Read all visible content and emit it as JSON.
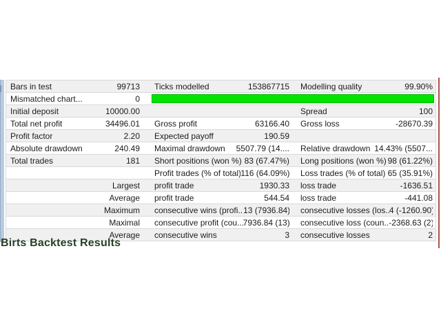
{
  "caption": "Birts Backtest Results",
  "colors": {
    "quality_bar": "#00e400",
    "quality_bar_border": "#00b400",
    "caption_text": "#254025",
    "left_strip": "#b9cbdf",
    "right_line": "#ad5050",
    "row_alt": "#f0f0f0",
    "row_border": "#d9d9d9",
    "text": "#1b1b1b"
  },
  "report": {
    "rows": [
      {
        "l1": "Bars in test",
        "v1": "99713",
        "l2": "Ticks modelled",
        "v2": "153867715",
        "l3": "Modelling quality",
        "v3": "99.90%"
      },
      {
        "l1": "Mismatched chart...",
        "v1": "0",
        "l2": "",
        "v2": "",
        "l3": "",
        "v3": ""
      },
      {
        "l1": "Initial deposit",
        "v1": "10000.00",
        "l2": "",
        "v2": "",
        "l3": "Spread",
        "v3": "100"
      },
      {
        "l1": "Total net profit",
        "v1": "34496.01",
        "l2": "Gross profit",
        "v2": "63166.40",
        "l3": "Gross loss",
        "v3": "-28670.39"
      },
      {
        "l1": "Profit factor",
        "v1": "2.20",
        "l2": "Expected payoff",
        "v2": "190.59",
        "l3": "",
        "v3": ""
      },
      {
        "l1": "Absolute drawdown",
        "v1": "240.49",
        "l2": "Maximal drawdown",
        "v2": "5507.79 (14....",
        "l3": "Relative drawdown",
        "v3": "14.43% (5507..."
      },
      {
        "l1": "Total trades",
        "v1": "181",
        "l2": "Short positions (won %)",
        "v2": "83 (67.47%)",
        "l3": "Long positions (won %)",
        "v3": "98 (61.22%)"
      },
      {
        "l1": "",
        "v1": "",
        "l2": "Profit trades (% of total)",
        "v2": "116 (64.09%)",
        "l3": "Loss trades (% of total)",
        "v3": "65 (35.91%)"
      },
      {
        "l1": "",
        "v1": "Largest",
        "l2": "profit trade",
        "v2": "1930.33",
        "l3": "loss trade",
        "v3": "-1636.51"
      },
      {
        "l1": "",
        "v1": "Average",
        "l2": "profit trade",
        "v2": "544.54",
        "l3": "loss trade",
        "v3": "-441.08"
      },
      {
        "l1": "",
        "v1": "Maximum",
        "l2": "consecutive wins (profi...",
        "v2": "13 (7936.84)",
        "l3": "consecutive losses (los...",
        "v3": "4 (-1260.90)"
      },
      {
        "l1": "",
        "v1": "Maximal",
        "l2": "consecutive profit (cou...",
        "v2": "7936.84 (13)",
        "l3": "consecutive loss (coun...",
        "v3": "-2368.63 (2)"
      },
      {
        "l1": "",
        "v1": "Average",
        "l2": "consecutive wins",
        "v2": "3",
        "l3": "consecutive losses",
        "v3": "2"
      }
    ]
  }
}
